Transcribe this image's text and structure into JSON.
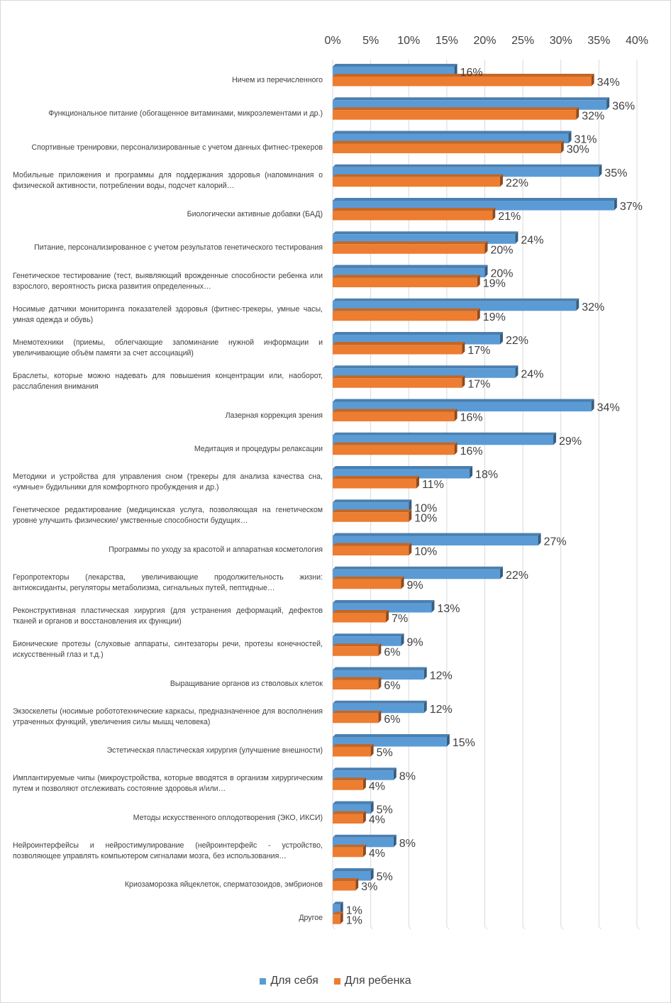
{
  "colors": {
    "self": "#5b9bd5",
    "child": "#ed7d31",
    "grid": "#d9d9d9",
    "text": "#404040"
  },
  "legend": {
    "self": "Для себя",
    "child": "Для ребенка"
  },
  "chart_data": {
    "type": "bar",
    "orientation": "horizontal",
    "xlim": [
      0,
      40
    ],
    "ticks": [
      "0%",
      "5%",
      "10%",
      "15%",
      "20%",
      "25%",
      "30%",
      "35%",
      "40%"
    ],
    "grid": true,
    "legend_position": "bottom",
    "categories": [
      "Ничем из перечисленного",
      "Функциональное питание (обогащенное витаминами, микроэлементами и др.)",
      "Спортивные тренировки, персонализированные с учетом данных фитнес-трекеров",
      "Мобильные приложения и программы для поддержания здоровья (напоминания о физической активности, потреблении воды, подсчет калорий…",
      "Биологически активные добавки (БАД)",
      "Питание, персонализированное с учетом результатов генетического тестирования",
      "Генетическое тестирование (тест, выявляющий врожденные способности ребенка или взрослого, вероятность риска развития определенных…",
      "Носимые датчики мониторинга показателей здоровья (фитнес-трекеры, умные часы, умная одежда и обувь)",
      "Мнемотехники (приемы, облегчающие запоминание нужной информации и увеличивающие объём памяти за счет ассоциаций)",
      "Браслеты, которые можно надевать для повышения концентрации или, наоборот, расслабления внимания",
      "Лазерная коррекция зрения",
      "Медитация и процедуры релаксации",
      "Методики и устройства для управления сном (трекеры для анализа качества сна, «умные» будильники для комфортного пробуждения и др.)",
      "Генетическое редактирование (медицинская услуга, позволяющая на генетическом уровне улучшить физические/ умственные способности будущих…",
      "Программы по уходу за красотой и аппаратная косметология",
      "Геропротекторы (лекарства, увеличивающие продолжительность жизни: антиоксиданты, регуляторы метаболизма, сигнальных путей, пептидные…",
      "Реконструктивная пластическая хирургия (для устранения деформаций, дефектов тканей и органов и восстановления их функции)",
      "Бионические протезы (слуховые аппараты, синтезаторы речи, протезы конечностей, искусственный глаз и т.д.)",
      "Выращивание органов из стволовых клеток",
      "Экзоскелеты (носимые робототехнические каркасы, предназначенное для восполнения утраченных функций, увеличения силы мышц человека)",
      "Эстетическая пластическая хирургия (улучшение внешности)",
      "Имплантируемые чипы (микроустройства, которые вводятся в организм хирургическим путем и позволяют отслеживать состояние здоровья и/или…",
      "Методы искусственного оплодотворения (ЭКО, ИКСИ)",
      "Нейроинтерфейсы и нейростимулирование (нейроинтерфейс - устройство, позволяющее управлять компьютером сигналами мозга, без использования…",
      "Криозаморозка яйцеклеток, сперматозоидов, эмбрионов",
      "Другое"
    ],
    "series": [
      {
        "name": "Для себя",
        "values": [
          16,
          36,
          31,
          35,
          37,
          24,
          20,
          32,
          22,
          24,
          34,
          29,
          18,
          10,
          27,
          22,
          13,
          9,
          12,
          12,
          15,
          8,
          5,
          8,
          5,
          1
        ]
      },
      {
        "name": "Для ребенка",
        "values": [
          34,
          32,
          30,
          22,
          21,
          20,
          19,
          19,
          17,
          17,
          16,
          16,
          11,
          10,
          10,
          9,
          7,
          6,
          6,
          6,
          5,
          4,
          4,
          4,
          3,
          1
        ]
      }
    ]
  }
}
